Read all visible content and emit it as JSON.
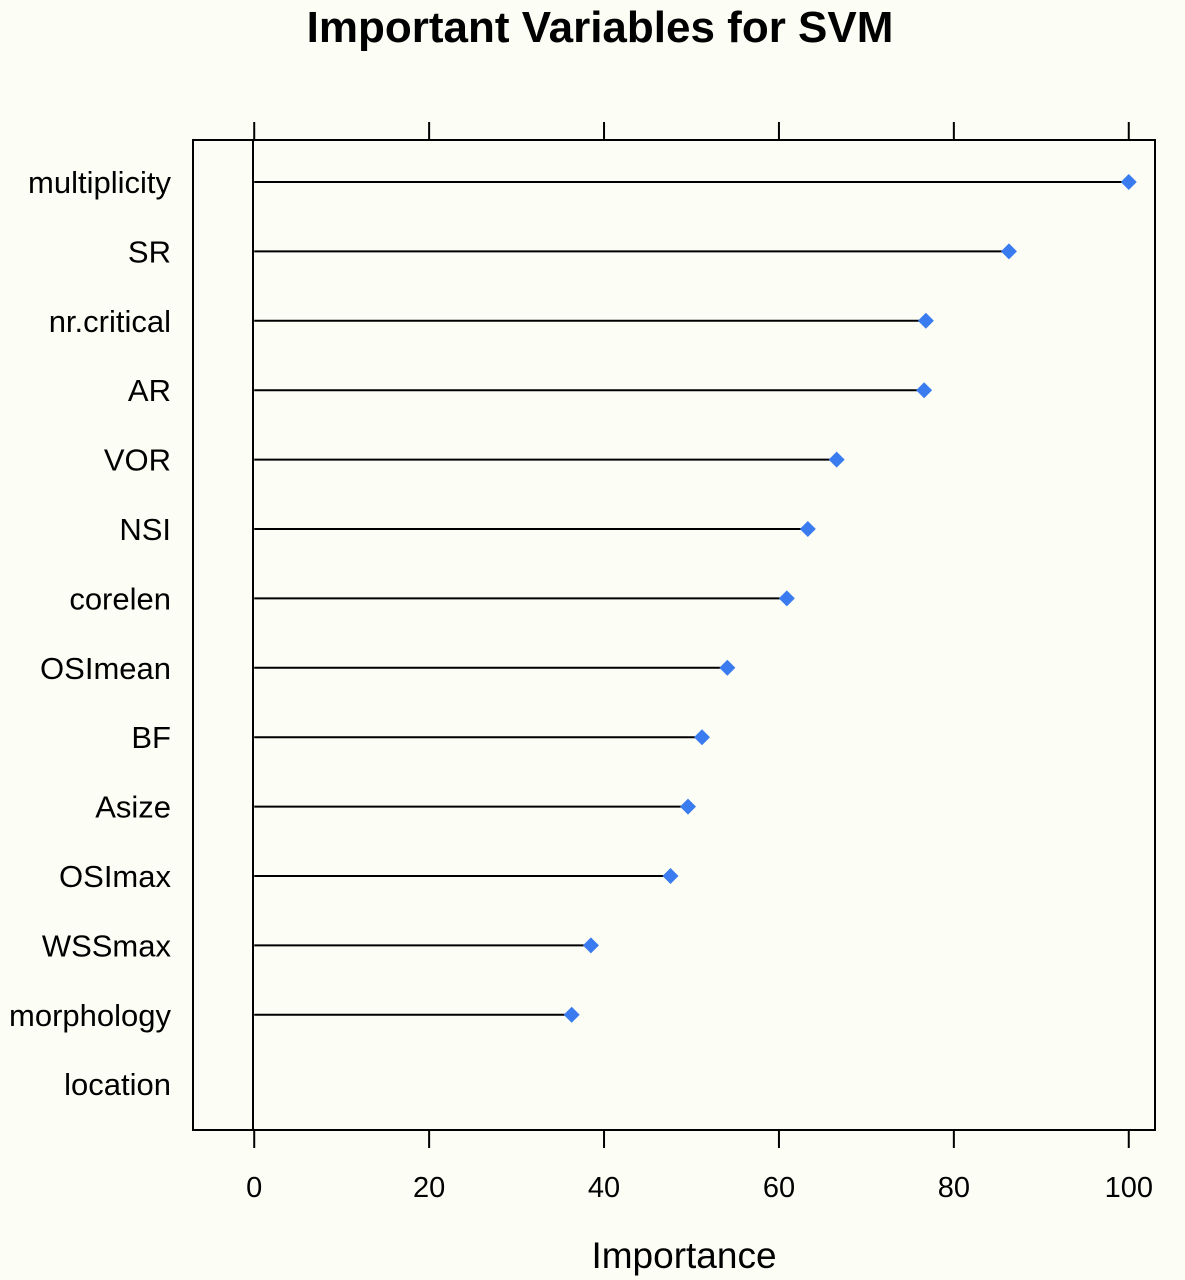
{
  "chart_data": {
    "type": "dot",
    "title": "Important Variables for SVM",
    "xlabel": "Importance",
    "ylabel": "",
    "xlim": [
      -7,
      103
    ],
    "xticks": [
      0,
      20,
      40,
      60,
      80,
      100
    ],
    "categories": [
      "multiplicity",
      "SR",
      "nr.critical",
      "AR",
      "VOR",
      "NSI",
      "corelen",
      "OSImean",
      "BF",
      "Asize",
      "OSImax",
      "WSSmax",
      "morphology",
      "location"
    ],
    "values": [
      100,
      86.3,
      76.8,
      76.6,
      66.6,
      63.3,
      60.9,
      54.1,
      51.2,
      49.6,
      47.6,
      38.5,
      36.3,
      0
    ],
    "grid": false,
    "marker_color": "#3a7cf0"
  }
}
